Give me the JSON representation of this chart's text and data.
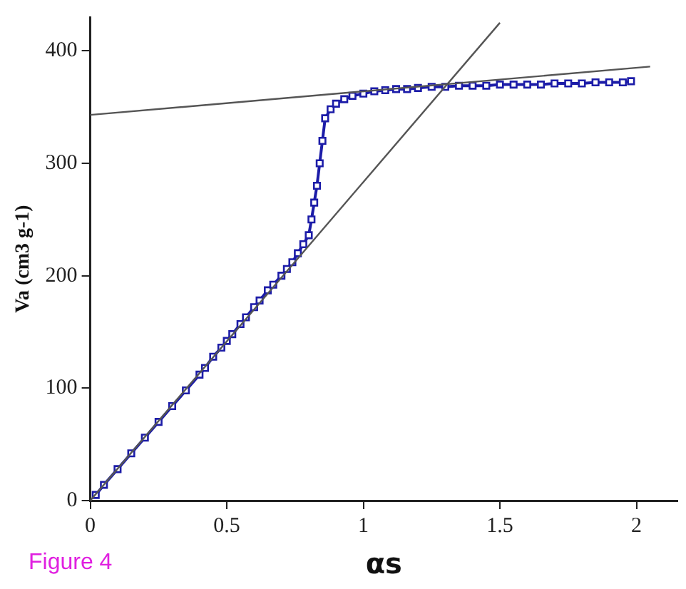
{
  "chart_data": {
    "type": "line",
    "xlabel": "αs",
    "ylabel": "Va (cm3 g-1)",
    "annotations": [
      "Figure 4"
    ],
    "xlim": [
      0,
      2.15
    ],
    "ylim": [
      0,
      430
    ],
    "xticks": [
      0,
      0.5,
      1,
      1.5,
      2
    ],
    "yticks": [
      0,
      100,
      200,
      300,
      400
    ],
    "grid": false,
    "legend": false,
    "series": [
      {
        "color": "#555555",
        "marker": "none",
        "x": [
          0,
          2.05
        ],
        "values": [
          343,
          386
        ]
      },
      {
        "color": "#555555",
        "marker": "none",
        "x": [
          0,
          1.5
        ],
        "values": [
          0,
          425
        ]
      },
      {
        "color": "#1c1ca8",
        "marker": "square",
        "x": [
          0.02,
          0.05,
          0.1,
          0.15,
          0.2,
          0.25,
          0.3,
          0.35,
          0.4,
          0.42,
          0.45,
          0.48,
          0.5,
          0.52,
          0.55,
          0.57,
          0.6,
          0.62,
          0.65,
          0.67,
          0.7,
          0.72,
          0.74,
          0.76,
          0.78,
          0.8,
          0.81,
          0.82,
          0.83,
          0.84,
          0.85,
          0.86,
          0.88,
          0.9,
          0.93,
          0.96,
          1.0,
          1.04,
          1.08,
          1.12,
          1.16,
          1.2,
          1.25,
          1.3,
          1.35,
          1.4,
          1.45,
          1.5,
          1.55,
          1.6,
          1.65,
          1.7,
          1.75,
          1.8,
          1.85,
          1.9,
          1.95,
          1.98
        ],
        "values": [
          5,
          14,
          28,
          42,
          56,
          70,
          84,
          98,
          112,
          118,
          128,
          136,
          142,
          148,
          157,
          163,
          172,
          178,
          187,
          192,
          200,
          206,
          212,
          220,
          228,
          236,
          250,
          265,
          280,
          300,
          320,
          340,
          348,
          353,
          357,
          360,
          362,
          364,
          365,
          366,
          366,
          367,
          368,
          368,
          369,
          369,
          369,
          370,
          370,
          370,
          370,
          371,
          371,
          371,
          372,
          372,
          372,
          373
        ]
      }
    ]
  }
}
